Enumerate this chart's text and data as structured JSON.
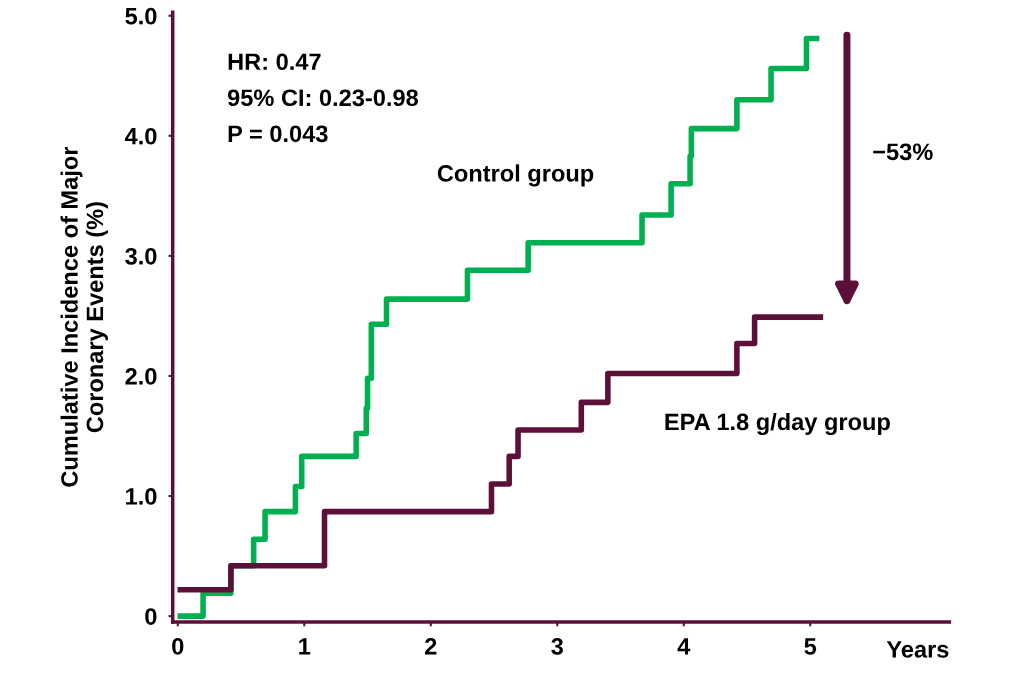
{
  "chart_data": {
    "type": "step",
    "ylabel": "Cumulative Incidence of Major\nCoronary Events (%)",
    "xlabel": "Years",
    "series": [
      {
        "name": "Control group",
        "color": "#00b050",
        "x": [
          0.02,
          0.2,
          0.42,
          0.6,
          0.69,
          0.93,
          0.98,
          1.41,
          1.49,
          1.5,
          1.53,
          1.65,
          2.29,
          2.77,
          3.67,
          3.9,
          4.05,
          4.06,
          4.42,
          4.69,
          4.97,
          5.05
        ],
        "values": [
          0,
          0.19,
          0.42,
          0.64,
          0.87,
          1.08,
          1.33,
          1.52,
          1.73,
          1.98,
          2.43,
          2.64,
          2.88,
          3.11,
          3.34,
          3.6,
          3.83,
          4.06,
          4.3,
          4.56,
          4.81,
          4.81
        ]
      },
      {
        "name": "EPA 1.8 g/day group",
        "color": "#5c1039",
        "x": [
          0.02,
          0.42,
          1.16,
          2.48,
          2.62,
          2.69,
          3.19,
          3.4,
          4.42,
          4.56,
          5.08
        ],
        "values": [
          0.22,
          0.42,
          0.87,
          1.1,
          1.33,
          1.55,
          1.78,
          2.02,
          2.27,
          2.49,
          2.49
        ]
      }
    ],
    "annotations": [
      "HR: 0.47",
      "95% CI: 0.23-0.98",
      "P = 0.043",
      "−53%"
    ],
    "xlim": [
      -0.04,
      6.1
    ],
    "ylim": [
      -0.05,
      5.03
    ],
    "xticks": [
      0,
      1,
      2,
      3,
      4,
      5
    ],
    "yticks": [
      0,
      {
        "value": 1,
        "label": "1.0"
      },
      {
        "value": 2,
        "label": "2.0"
      },
      {
        "value": 3,
        "label": "3.0"
      },
      {
        "value": 4,
        "label": "4.0"
      },
      {
        "value": 5,
        "label": "5.0"
      }
    ],
    "grid": false,
    "legend": false,
    "line_style": "solid",
    "marker": "none"
  }
}
